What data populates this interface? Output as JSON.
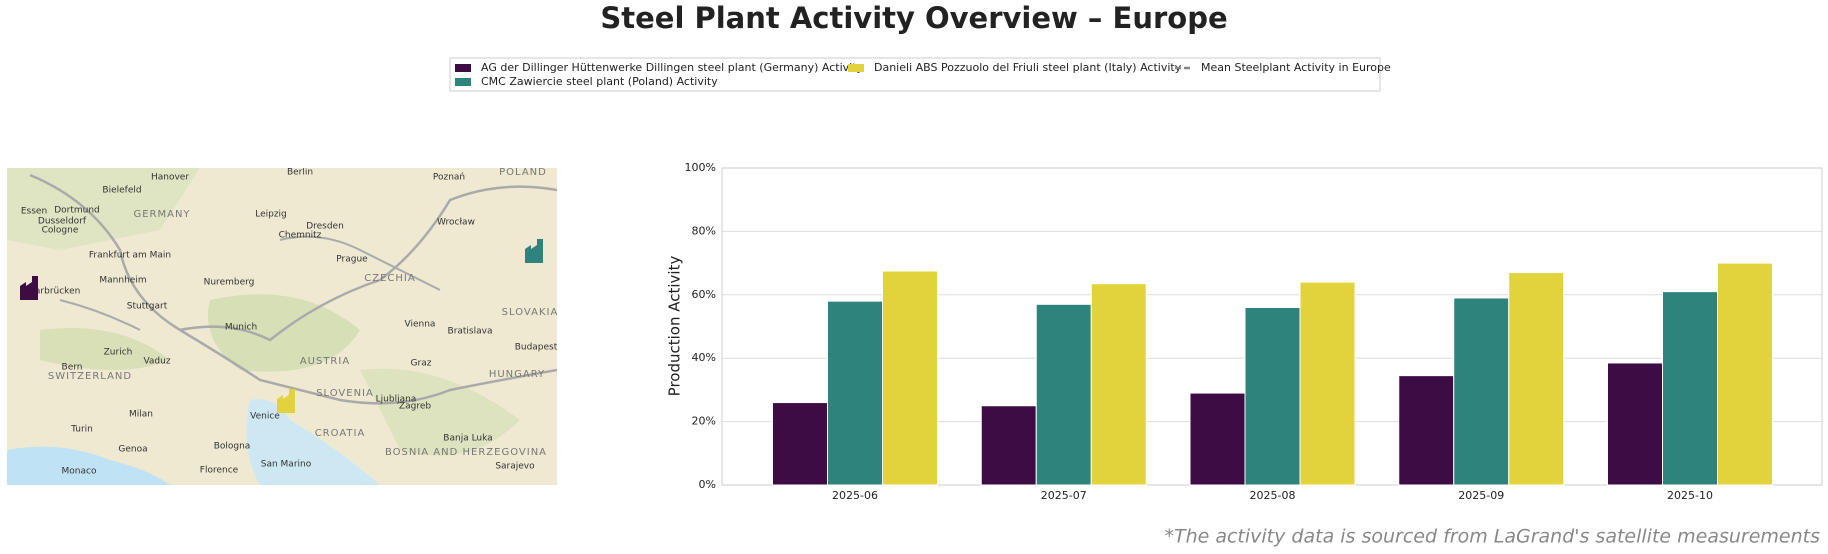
{
  "chart_data": {
    "type": "bar",
    "title": "Steel Plant Activity Overview – Europe",
    "y_label": "Production Activity",
    "footnote": "*The activity data is sourced from LaGrand's satellite measurements",
    "categories": [
      "2025-06",
      "2025-07",
      "2025-08",
      "2025-09",
      "2025-10"
    ],
    "series": [
      {
        "name": "AG der Dillinger Hüttenwerke Dillingen steel plant (Germany) Activity",
        "color": "#3d0c45",
        "values": [
          26,
          25,
          29,
          34.5,
          38.5
        ]
      },
      {
        "name": "CMC Zawiercie steel plant (Poland) Activity",
        "color": "#2e837d",
        "values": [
          58,
          57,
          56,
          59,
          61
        ]
      },
      {
        "name": "Danieli ABS Pozzuolo del Friuli steel plant (Italy) Activity",
        "color": "#e2d23c",
        "values": [
          67.5,
          63.5,
          64,
          67,
          70
        ]
      }
    ],
    "mean_line": {
      "name": "Mean Steelplant Activity in Europe",
      "color": "#888888"
    },
    "ylim": [
      0,
      100
    ],
    "yticks": [
      {
        "value": 0,
        "label": "0%"
      },
      {
        "value": 20,
        "label": "20%"
      },
      {
        "value": 40,
        "label": "40%"
      },
      {
        "value": 60,
        "label": "60%"
      },
      {
        "value": 80,
        "label": "80%"
      },
      {
        "value": 100,
        "label": "100%"
      }
    ],
    "grid": true,
    "map_labels": [
      "Berlin",
      "Hanover",
      "Bielefeld",
      "Essen",
      "Dortmund",
      "Dusseldorf",
      "Cologne",
      "GERMANY",
      "Leipzig",
      "Dresden",
      "Chemnitz",
      "Poznań",
      "POLAND",
      "Wrocław",
      "Frankfurt am Main",
      "Prague",
      "CZECHIA",
      "Mannheim",
      "Nuremberg",
      "Saarbrücken",
      "Stuttgart",
      "Munich",
      "Vienna",
      "Bratislava",
      "SLOVAKIA",
      "Budapest",
      "Zurich",
      "Vaduz",
      "Bern",
      "SWITZERLAND",
      "AUSTRIA",
      "Graz",
      "HUNGARY",
      "SLOVENIA",
      "Ljubljana",
      "Zagreb",
      "Milan",
      "Venice",
      "CROATIA",
      "Turin",
      "Genoa",
      "Bologna",
      "Banja Luka",
      "BOSNIA AND HERZEGOVINA",
      "Monaco",
      "Florence",
      "San Marino",
      "Sarajevo"
    ]
  }
}
